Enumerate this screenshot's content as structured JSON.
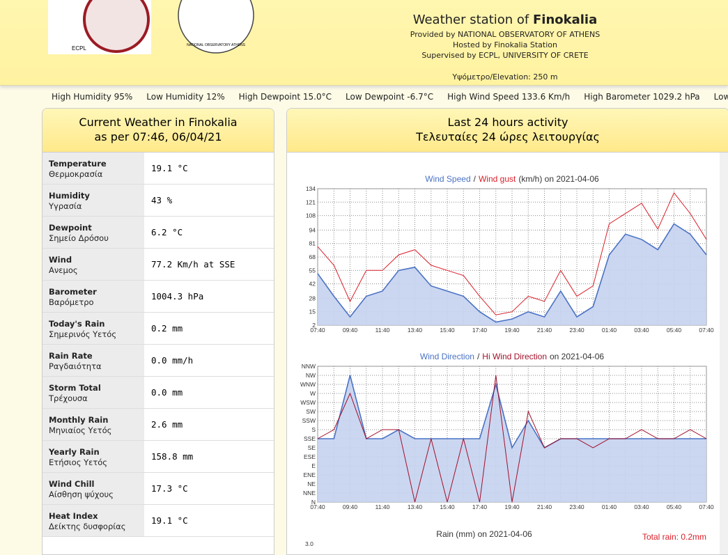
{
  "header": {
    "title_prefix": "Weather station of",
    "title_station": "Finokalia",
    "lines": [
      "Provided by NATIONAL OBSERVATORY OF ATHENS",
      "Hosted by Finokalia Station",
      "Supervised by ECPL, UNIVERSITY OF CRETE"
    ],
    "elevation": "Υψόμετρο/Elevation: 250 m",
    "logo_left": "ECPL",
    "logo_right": "NATIONAL OBSERVATORY ATHENS"
  },
  "ticker": [
    "High Humidity 95%",
    "Low Humidity 12%",
    "High Dewpoint 15.0°C",
    "Low Dewpoint -6.7°C",
    "High Wind Speed 133.6 Km/h",
    "High Barometer 1029.2 hPa",
    "Low Baromet"
  ],
  "current_weather": {
    "title": "Current Weather in Finokalia",
    "subtitle": "as per 07:46, 06/04/21",
    "rows": [
      {
        "label": "Temperature",
        "label_gr": "Θερμοκρασία",
        "value": "19.1 °C"
      },
      {
        "label": "Humidity",
        "label_gr": "Υγρασία",
        "value": "43 %"
      },
      {
        "label": "Dewpoint",
        "label_gr": "Σημείο Δρόσου",
        "value": "6.2 °C"
      },
      {
        "label": "Wind",
        "label_gr": "Ανεμος",
        "value": "77.2 Km/h at SSE"
      },
      {
        "label": "Barometer",
        "label_gr": "Βαρόμετρο",
        "value": "1004.3 hPa"
      },
      {
        "label": "Today's Rain",
        "label_gr": "Σημερινός Υετός",
        "value": "0.2 mm"
      },
      {
        "label": "Rain Rate",
        "label_gr": "Ραγδαιότητα",
        "value": "0.0 mm/h"
      },
      {
        "label": "Storm Total",
        "label_gr": "Τρέχουσα",
        "value": "0.0 mm"
      },
      {
        "label": "Monthly Rain",
        "label_gr": "Μηνιαίος Υετός",
        "value": "2.6 mm"
      },
      {
        "label": "Yearly Rain",
        "label_gr": "Ετήσιος Υετός",
        "value": "158.8 mm"
      },
      {
        "label": "Wind Chill",
        "label_gr": "Αίσθηση ψύχους",
        "value": "17.3 °C"
      },
      {
        "label": "Heat Index",
        "label_gr": "Δείκτης δυσφορίας",
        "value": "19.1 °C"
      }
    ]
  },
  "activity": {
    "title": "Last 24 hours activity",
    "subtitle": "Τελευταίες 24 ώρες λειτουργίας"
  },
  "chart_data": [
    {
      "type": "line",
      "title_separator": "/",
      "title_suffix": "(km/h) on 2021-04-06",
      "x": [
        "07:40",
        null,
        "09:40",
        null,
        "11:40",
        null,
        "13:40",
        null,
        "15:40",
        null,
        "17:40",
        null,
        "19:40",
        null,
        "21:40",
        null,
        "23:40",
        null,
        "01:40",
        null,
        "03:40",
        null,
        "05:40",
        null,
        "07:40"
      ],
      "series": [
        {
          "name": "Wind Speed",
          "color": "#4a72c4",
          "fill": "#c5d2ef",
          "values": [
            52,
            30,
            10,
            30,
            35,
            55,
            58,
            40,
            35,
            30,
            15,
            5,
            8,
            15,
            10,
            35,
            10,
            20,
            70,
            90,
            85,
            75,
            100,
            90,
            70
          ]
        },
        {
          "name": "Wind gust",
          "color": "#d8202a",
          "values": [
            78,
            60,
            25,
            55,
            55,
            70,
            75,
            60,
            55,
            50,
            30,
            12,
            15,
            30,
            25,
            55,
            30,
            40,
            100,
            110,
            120,
            95,
            130,
            110,
            85
          ]
        }
      ],
      "ylim": [
        2,
        134
      ],
      "yticks": [
        2,
        15,
        28,
        42,
        55,
        68,
        81,
        94,
        108,
        121,
        134
      ],
      "grid": true
    },
    {
      "type": "direction",
      "title_separator": "/",
      "title_suffix": "on 2021-04-06",
      "x": [
        "07:40",
        null,
        "09:40",
        null,
        "11:40",
        null,
        "13:40",
        null,
        "15:40",
        null,
        "17:40",
        null,
        "19:40",
        null,
        "21:40",
        null,
        "23:40",
        null,
        "01:40",
        null,
        "03:40",
        null,
        "05:40",
        null,
        "07:40"
      ],
      "series": [
        {
          "name": "Wind Direction",
          "color": "#4a72c4",
          "fill": "#c5d2ef",
          "values": [
            157.5,
            157.5,
            315,
            157.5,
            157.5,
            180,
            157.5,
            157.5,
            157.5,
            157.5,
            157.5,
            292.5,
            135,
            202.5,
            135,
            157.5,
            157.5,
            157.5,
            157.5,
            157.5,
            157.5,
            157.5,
            157.5,
            157.5,
            157.5
          ]
        },
        {
          "name": "Hi Wind Direction",
          "color": "#a0102a",
          "values": [
            157.5,
            180,
            270,
            157.5,
            180,
            180,
            0,
            157.5,
            0,
            157.5,
            0,
            315,
            0,
            225,
            135,
            157.5,
            157.5,
            135,
            157.5,
            157.5,
            180,
            157.5,
            157.5,
            180,
            157.5
          ]
        }
      ],
      "ylim": [
        0,
        337.5
      ],
      "yticks": [
        {
          "value": 0,
          "label": "N"
        },
        {
          "value": 22.5,
          "label": "NNE"
        },
        {
          "value": 45,
          "label": "NE"
        },
        {
          "value": 67.5,
          "label": "ENE"
        },
        {
          "value": 90,
          "label": "E"
        },
        {
          "value": 112.5,
          "label": "ESE"
        },
        {
          "value": 135,
          "label": "SE"
        },
        {
          "value": 157.5,
          "label": "SSE"
        },
        {
          "value": 180,
          "label": "S"
        },
        {
          "value": 202.5,
          "label": "SSW"
        },
        {
          "value": 225,
          "label": "SW"
        },
        {
          "value": 247.5,
          "label": "WSW"
        },
        {
          "value": 270,
          "label": "W"
        },
        {
          "value": 292.5,
          "label": "WNW"
        },
        {
          "value": 315,
          "label": "NW"
        },
        {
          "value": 337.5,
          "label": "NNW"
        }
      ],
      "grid": true
    },
    {
      "type": "bar",
      "title": "Rain (mm) on 2021-04-06",
      "annotation": "Total rain: 0.2mm",
      "ylim": [
        0,
        3
      ],
      "yticks": [
        {
          "value": 3,
          "label": "3.0"
        }
      ]
    }
  ]
}
